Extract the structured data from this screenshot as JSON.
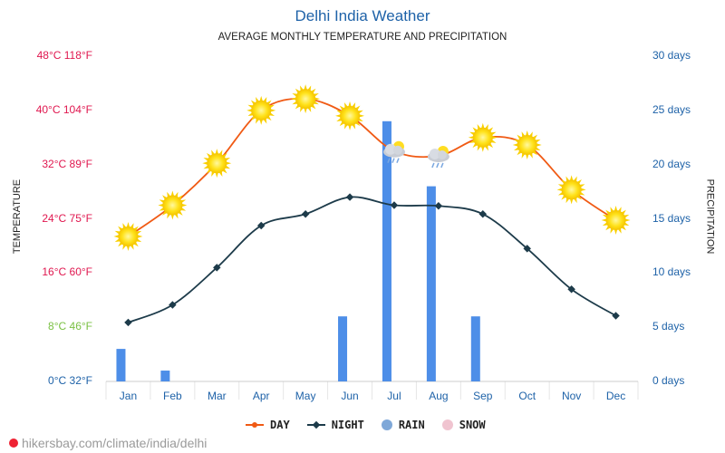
{
  "page": {
    "title": "Delhi India Weather",
    "subtitle": "AVERAGE MONTHLY TEMPERATURE AND PRECIPITATION",
    "footer": "hikersbay.com/climate/india/delhi",
    "left_axis_title": "TEMPERATURE",
    "right_axis_title": "PRECIPITATION"
  },
  "colors": {
    "day": "#f05a14",
    "night": "#1d3b4a",
    "rain": "#4d8ee8",
    "snow": "#f0b8c8",
    "left_tick_red": "#e0174f",
    "left_tick_green": "#7ac043",
    "left_tick_blue": "#1e62a8"
  },
  "legend": [
    {
      "key": "day",
      "label": "DAY"
    },
    {
      "key": "night",
      "label": "NIGHT"
    },
    {
      "key": "rain",
      "label": "RAIN"
    },
    {
      "key": "snow",
      "label": "SNOW"
    }
  ],
  "chart_data": {
    "type": "line",
    "title": "Delhi India Weather",
    "subtitle": "AVERAGE MONTHLY TEMPERATURE AND PRECIPITATION",
    "categories": [
      "Jan",
      "Feb",
      "Mar",
      "Apr",
      "May",
      "Jun",
      "Jul",
      "Aug",
      "Sep",
      "Oct",
      "Nov",
      "Dec"
    ],
    "ylabel": "TEMPERATURE",
    "y2label": "PRECIPITATION",
    "ylim": [
      0,
      48
    ],
    "y2lim": [
      0,
      30
    ],
    "left_ticks": [
      {
        "value": 0,
        "label": "0°C 32°F",
        "color": "#1e62a8"
      },
      {
        "value": 8,
        "label": "8°C 46°F",
        "color": "#7ac043"
      },
      {
        "value": 16,
        "label": "16°C 60°F",
        "color": "#e0174f"
      },
      {
        "value": 24,
        "label": "24°C 75°F",
        "color": "#e0174f"
      },
      {
        "value": 32,
        "label": "32°C 89°F",
        "color": "#e0174f"
      },
      {
        "value": 40,
        "label": "40°C 104°F",
        "color": "#e0174f"
      },
      {
        "value": 48,
        "label": "48°C 118°F",
        "color": "#e0174f"
      }
    ],
    "right_ticks": [
      {
        "value": 0,
        "label": "0 days"
      },
      {
        "value": 5,
        "label": "5 days"
      },
      {
        "value": 10,
        "label": "10 days"
      },
      {
        "value": 15,
        "label": "15 days"
      },
      {
        "value": 20,
        "label": "20 days"
      },
      {
        "value": 25,
        "label": "25 days"
      },
      {
        "value": 30,
        "label": "30 days"
      }
    ],
    "series": [
      {
        "name": "DAY",
        "axis": "left",
        "values": [
          21.4,
          26,
          32.2,
          40,
          41.7,
          39.2,
          34,
          33.3,
          36,
          34.9,
          28.3,
          23.8
        ],
        "icons": [
          "sun",
          "sun",
          "sun",
          "sun",
          "sun",
          "sun",
          "cloud-rain",
          "cloud-rain",
          "sun",
          "sun",
          "sun",
          "sun"
        ]
      },
      {
        "name": "NIGHT",
        "axis": "left",
        "values": [
          8.7,
          11.3,
          16.8,
          23,
          24.7,
          27.2,
          26,
          25.9,
          24.7,
          19.6,
          13.6,
          9.7
        ]
      },
      {
        "name": "RAIN",
        "axis": "right",
        "type": "bar",
        "values": [
          3,
          1,
          0,
          0,
          0,
          6,
          24,
          18,
          6,
          0,
          0,
          0
        ]
      },
      {
        "name": "SNOW",
        "axis": "right",
        "type": "bar",
        "values": [
          0,
          0,
          0,
          0,
          0,
          0,
          0,
          0,
          0,
          0,
          0,
          0
        ]
      }
    ]
  }
}
